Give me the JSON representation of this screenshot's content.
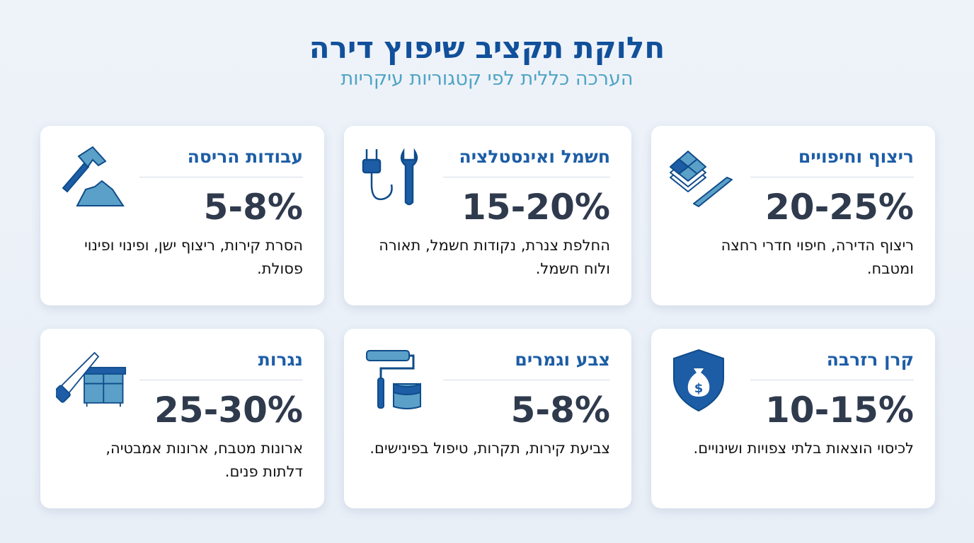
{
  "header": {
    "title": "חלוקת תקציב שיפוץ דירה",
    "subtitle": "הערכה כללית לפי קטגוריות עיקריות"
  },
  "colors": {
    "title": "#11509a",
    "accent": "#1d5da6",
    "icon_light": "#5aa0c8",
    "percent": "#2f3a4d"
  },
  "cards": [
    {
      "title": "ריצוף וחיפויים",
      "percent": "20-25%",
      "description": "ריצוף הדירה, חיפוי חדרי רחצה ומטבח.",
      "icon": "tiles-icon"
    },
    {
      "title": "חשמל ואינסטלציה",
      "percent": "15-20%",
      "description": "החלפת צנרת, נקודות חשמל, תאורה ולוח חשמל.",
      "icon": "plug-wrench-icon"
    },
    {
      "title": "עבודות הריסה",
      "percent": "5-8%",
      "description": "הסרת קירות, ריצוף ישן, ופינוי ופינוי פסולת.",
      "icon": "hammer-rubble-icon"
    },
    {
      "title": "קרן רזרבה",
      "percent": "10-15%",
      "description": "לכיסוי הוצאות בלתי צפויות ושינויים.",
      "icon": "shield-money-icon"
    },
    {
      "title": "צבע וגמרים",
      "percent": "5-8%",
      "description": "צביעת קירות, תקרות, טיפול בפינישים.",
      "icon": "paint-roller-icon"
    },
    {
      "title": "נגרות",
      "percent": "25-30%",
      "description": "ארונות מטבח, ארונות אמבטיה, דלתות פנים.",
      "icon": "saw-cabinet-icon"
    }
  ]
}
